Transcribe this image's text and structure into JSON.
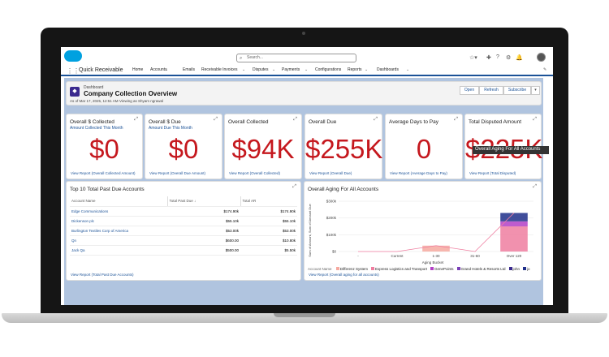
{
  "app": {
    "name": "Quick Receivable"
  },
  "search": {
    "placeholder": "Search..."
  },
  "nav": [
    "Home",
    "Accounts",
    "Emails",
    "Receivable Invoices",
    "Disputes",
    "Payments",
    "Configurations",
    "Reports",
    "Dashboards"
  ],
  "dashboard": {
    "label": "Dashboard",
    "title": "Company Collection Overview",
    "subtitle": "As of Mar 17, 2025, 12:51 AM·Viewing as Shyam ngrawal",
    "buttons": [
      "Open",
      "Refresh",
      "Subscribe"
    ]
  },
  "kpis": [
    {
      "title": "Overall $ Collected",
      "subtitle": "Amount Collected This Month",
      "value": "$0",
      "link": "View Report (Overall Collected Amount)"
    },
    {
      "title": "Overall $ Due",
      "subtitle": "Amount Due This Month",
      "value": "$0",
      "link": "View Report (Overall Due Amount)"
    },
    {
      "title": "Overall Collected",
      "subtitle": "",
      "value": "$94K",
      "link": "View Report (Overall Collected)"
    },
    {
      "title": "Overall Due",
      "subtitle": "",
      "value": "$255K",
      "link": "View Report (Overall Due)"
    },
    {
      "title": "Average Days to Pay",
      "subtitle": "",
      "value": "0",
      "link": "View Report (Average Days to Pay)"
    },
    {
      "title": "Total Disputed Amount",
      "subtitle": "",
      "value": "$225K",
      "link": "View Report (Total Disputed)"
    }
  ],
  "top10": {
    "title": "Top 10 Total Past Due Accounts",
    "headers": [
      "Account Name",
      "Total Past Due ↓",
      "Total AR"
    ],
    "rows": [
      [
        "Edge Communications",
        "$174.90k",
        "$174.90k"
      ],
      [
        "Dickenson plc",
        "$55.10k",
        "$55.10k"
      ],
      [
        "Burlington Textiles Corp of America",
        "$53.00k",
        "$53.00k"
      ],
      [
        "Qn",
        "$600.00",
        "$10.80k"
      ],
      [
        "Jack Qa",
        "$500.00",
        "$5.50k"
      ]
    ],
    "link": "View Report (Total Past Due Accounts)"
  },
  "aging": {
    "title": "Overall Aging For All Accounts",
    "tooltip": "Overall Aging For All Accounts",
    "ylabel": "Sum of Amount, Sum of Amount Due",
    "xlabel": "Aging Bucket",
    "legend_label": "Account Name",
    "legend": [
      {
        "name": "Differenz System",
        "color": "#f6a9a0"
      },
      {
        "name": "Express Logistics and Transport",
        "color": "#ef7ea0"
      },
      {
        "name": "GenePoints",
        "color": "#b33fc6"
      },
      {
        "name": "Grand Hotels & Resorts Ltd",
        "color": "#7a3fb8"
      },
      {
        "name": "john",
        "color": "#3b2a8e"
      },
      {
        "name": "jo",
        "color": "#1f2f8a"
      }
    ],
    "link": "View Report (Overall aging for all accounts)"
  },
  "chart_data": {
    "type": "bar",
    "categories": [
      "-",
      "Current",
      "1-30",
      "31-60",
      "Over 120"
    ],
    "ylim": [
      0,
      300000
    ],
    "yticks": [
      "$0",
      "$100k",
      "$200k",
      "$300k"
    ],
    "series": [
      {
        "name": "Differenz System",
        "values": [
          0,
          0,
          35000,
          0,
          0
        ]
      },
      {
        "name": "Express Logistics and Transport",
        "values": [
          0,
          0,
          0,
          0,
          150000
        ]
      },
      {
        "name": "GenePoints",
        "values": [
          0,
          0,
          0,
          0,
          30000
        ]
      },
      {
        "name": "Grand Hotels & Resorts Ltd",
        "values": [
          0,
          0,
          0,
          0,
          0
        ]
      },
      {
        "name": "john",
        "values": [
          0,
          0,
          0,
          0,
          0
        ]
      },
      {
        "name": "jo",
        "values": [
          0,
          0,
          0,
          0,
          50000
        ]
      }
    ]
  }
}
